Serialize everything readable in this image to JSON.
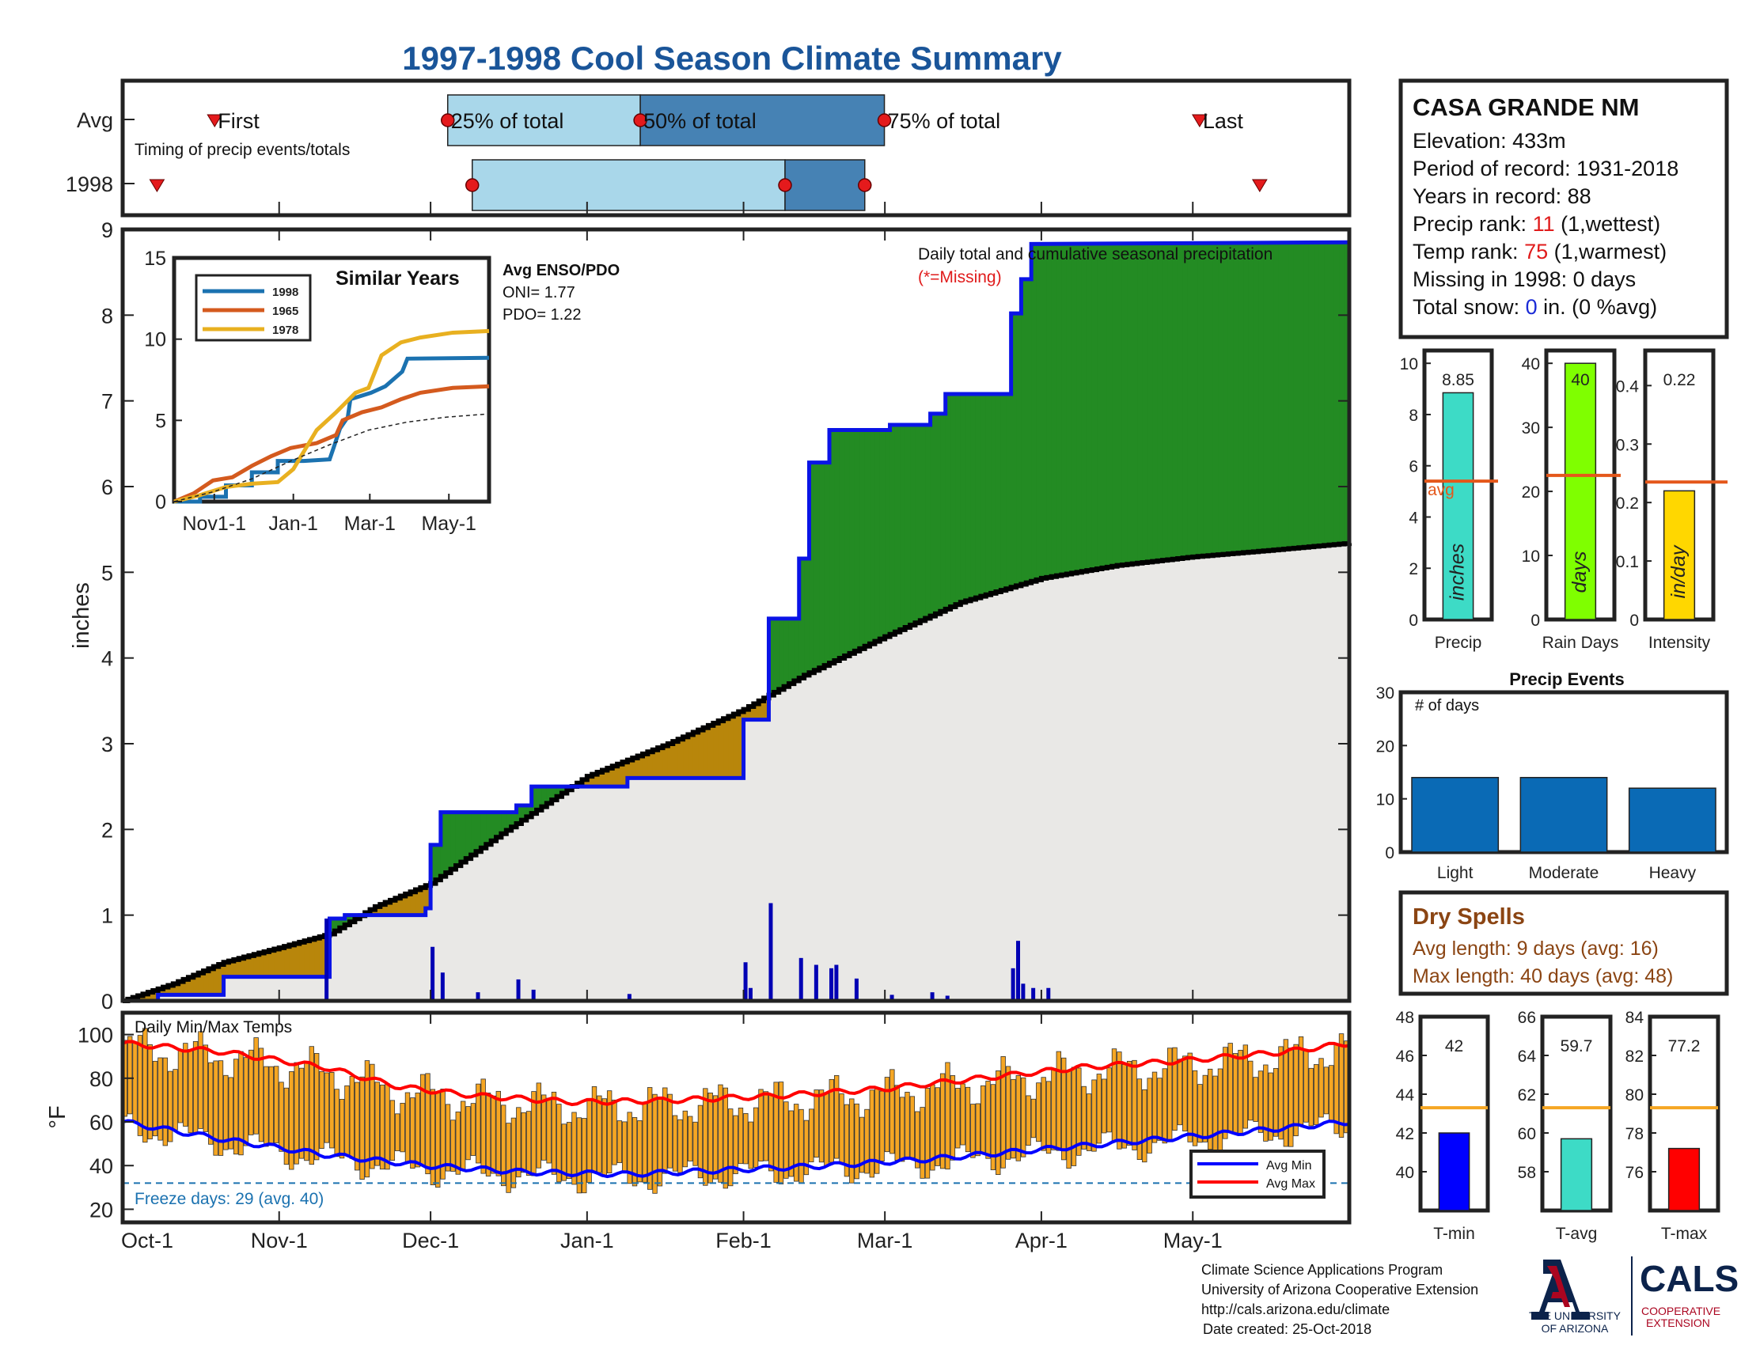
{
  "title": "1997-1998 Cool Season Climate Summary",
  "timing": {
    "row_avg": "Avg",
    "row_year": "1998",
    "first_label": "First",
    "last_label": "Last",
    "p25_label": "25% of total",
    "p50_label": "50% of total",
    "p75_label": "75% of total",
    "subtitle": "Timing of precip events/totals",
    "avg": {
      "first": 0.075,
      "p25": 0.265,
      "p50": 0.422,
      "p75": 0.621,
      "last": 0.878
    },
    "year": {
      "first": 0.028,
      "p25": 0.285,
      "p50": 0.54,
      "p75": 0.605,
      "last": 0.927
    }
  },
  "station": {
    "name": "CASA GRANDE NM",
    "elevation": "Elevation: 433m",
    "period": "Period of record: 1931-2018",
    "years": "Years in record: 88",
    "precip_rank_label": "Precip rank: ",
    "precip_rank_value": "11",
    "precip_rank_note": " (1,wettest)",
    "temp_rank_label": "Temp rank: ",
    "temp_rank_value": "75",
    "temp_rank_note": " (1,warmest)",
    "missing": "Missing in 1998: 0 days",
    "snow_label": "Total snow: ",
    "snow_value": "0",
    "snow_note": " in. (0 %avg)"
  },
  "main_chart": {
    "ylabel": "inches",
    "yticks": [
      0,
      1,
      2,
      3,
      4,
      5,
      6,
      7,
      8,
      9
    ],
    "xticks": [
      "Oct-1",
      "Nov-1",
      "Dec-1",
      "Jan-1",
      "Feb-1",
      "Mar-1",
      "Apr-1",
      "May-1"
    ],
    "xtick_days": [
      0,
      31,
      61,
      92,
      123,
      151,
      182,
      212
    ],
    "legend_text": "Daily total and cumulative seasonal precipitation",
    "missing_note": "(*=Missing)",
    "enso_title": "Avg ENSO/PDO",
    "oni": "ONI= 1.77",
    "pdo": "PDO= 1.22"
  },
  "chart_data": [
    {
      "type": "line",
      "title": "",
      "ylabel": "inches",
      "xlabel": "",
      "ylim": [
        0,
        9.0
      ],
      "x_unit": "day of season from Oct-1",
      "series": [
        {
          "name": "",
          "kind": "cumulative-observed-step",
          "points": [
            [
              0,
              0
            ],
            [
              7,
              0
            ],
            [
              7,
              0.07
            ],
            [
              20,
              0.07
            ],
            [
              20,
              0.28
            ],
            [
              41,
              0.28
            ],
            [
              41,
              0.96
            ],
            [
              44,
              0.96
            ],
            [
              44,
              1.0
            ],
            [
              60,
              1.0
            ],
            [
              60,
              1.08
            ],
            [
              61,
              1.08
            ],
            [
              61,
              1.82
            ],
            [
              63,
              1.82
            ],
            [
              63,
              2.2
            ],
            [
              78,
              2.2
            ],
            [
              78,
              2.28
            ],
            [
              81,
              2.28
            ],
            [
              81,
              2.5
            ],
            [
              100,
              2.5
            ],
            [
              100,
              2.6
            ],
            [
              123,
              2.6
            ],
            [
              123,
              3.28
            ],
            [
              128,
              3.28
            ],
            [
              128,
              4.46
            ],
            [
              134,
              4.46
            ],
            [
              134,
              5.16
            ],
            [
              136,
              5.16
            ],
            [
              136,
              6.28
            ],
            [
              140,
              6.28
            ],
            [
              140,
              6.66
            ],
            [
              152,
              6.66
            ],
            [
              152,
              6.72
            ],
            [
              160,
              6.72
            ],
            [
              160,
              6.85
            ],
            [
              163,
              6.85
            ],
            [
              163,
              7.08
            ],
            [
              176,
              7.08
            ],
            [
              176,
              8.02
            ],
            [
              178,
              8.02
            ],
            [
              178,
              8.42
            ],
            [
              180,
              8.42
            ],
            [
              180,
              8.83
            ],
            [
              243,
              8.85
            ]
          ]
        },
        {
          "name": "",
          "kind": "cumulative-average",
          "points": [
            [
              0,
              0
            ],
            [
              10,
              0.2
            ],
            [
              20,
              0.45
            ],
            [
              31,
              0.62
            ],
            [
              41,
              0.78
            ],
            [
              50,
              1.1
            ],
            [
              61,
              1.37
            ],
            [
              75,
              1.95
            ],
            [
              92,
              2.62
            ],
            [
              108,
              3.0
            ],
            [
              123,
              3.4
            ],
            [
              135,
              3.8
            ],
            [
              151,
              4.25
            ],
            [
              166,
              4.65
            ],
            [
              182,
              4.93
            ],
            [
              197,
              5.08
            ],
            [
              212,
              5.18
            ],
            [
              228,
              5.26
            ],
            [
              243,
              5.34
            ]
          ]
        }
      ],
      "daily_bars": [
        [
          40,
          0.96
        ],
        [
          61,
          0.63
        ],
        [
          63,
          0.33
        ],
        [
          70,
          0.1
        ],
        [
          78,
          0.25
        ],
        [
          81,
          0.13
        ],
        [
          100,
          0.08
        ],
        [
          123,
          0.45
        ],
        [
          124,
          0.15
        ],
        [
          128,
          1.14
        ],
        [
          134,
          0.5
        ],
        [
          137,
          0.42
        ],
        [
          140,
          0.38
        ],
        [
          141,
          0.42
        ],
        [
          145,
          0.26
        ],
        [
          152,
          0.07
        ],
        [
          160,
          0.1
        ],
        [
          163,
          0.06
        ],
        [
          176,
          0.38
        ],
        [
          177,
          0.7
        ],
        [
          178,
          0.2
        ],
        [
          180,
          0.15
        ],
        [
          183,
          0.15
        ]
      ]
    },
    {
      "type": "line",
      "title": "Similar Years",
      "ylim": [
        0,
        15
      ],
      "yticks": [
        0,
        5,
        10,
        15
      ],
      "xticks": [
        "Nov1-1",
        "Jan-1",
        "Mar-1",
        "May-1"
      ],
      "series": [
        {
          "name": "1998",
          "color": "#1b72b0",
          "points": [
            [
              0,
              0
            ],
            [
              20,
              0
            ],
            [
              20,
              0.3
            ],
            [
              40,
              0.3
            ],
            [
              40,
              1.0
            ],
            [
              60,
              1.0
            ],
            [
              60,
              1.8
            ],
            [
              80,
              1.8
            ],
            [
              80,
              2.5
            ],
            [
              100,
              2.5
            ],
            [
              120,
              2.6
            ],
            [
              123,
              3.3
            ],
            [
              128,
              4.5
            ],
            [
              134,
              5.2
            ],
            [
              136,
              6.3
            ],
            [
              152,
              6.7
            ],
            [
              163,
              7.1
            ],
            [
              176,
              8.0
            ],
            [
              180,
              8.8
            ],
            [
              243,
              8.85
            ]
          ]
        },
        {
          "name": "1965",
          "color": "#d45a1e",
          "points": [
            [
              0,
              0
            ],
            [
              15,
              0.5
            ],
            [
              30,
              1.3
            ],
            [
              45,
              1.5
            ],
            [
              60,
              2.2
            ],
            [
              75,
              2.8
            ],
            [
              90,
              3.3
            ],
            [
              110,
              3.6
            ],
            [
              125,
              4.1
            ],
            [
              130,
              5.0
            ],
            [
              145,
              5.5
            ],
            [
              160,
              5.8
            ],
            [
              175,
              6.3
            ],
            [
              190,
              6.7
            ],
            [
              215,
              7.0
            ],
            [
              243,
              7.1
            ]
          ]
        },
        {
          "name": "1978",
          "color": "#e8b020",
          "points": [
            [
              0,
              0
            ],
            [
              20,
              0.4
            ],
            [
              40,
              0.9
            ],
            [
              60,
              1.1
            ],
            [
              80,
              1.2
            ],
            [
              92,
              2.0
            ],
            [
              110,
              4.4
            ],
            [
              125,
              5.5
            ],
            [
              140,
              6.7
            ],
            [
              150,
              7.0
            ],
            [
              160,
              9.0
            ],
            [
              175,
              9.8
            ],
            [
              190,
              10.1
            ],
            [
              215,
              10.4
            ],
            [
              243,
              10.5
            ]
          ]
        },
        {
          "name": "",
          "color": "#222222",
          "dashed": true,
          "points": [
            [
              0,
              0
            ],
            [
              30,
              0.6
            ],
            [
              60,
              1.4
            ],
            [
              90,
              2.5
            ],
            [
              120,
              3.5
            ],
            [
              150,
              4.4
            ],
            [
              180,
              4.9
            ],
            [
              210,
              5.2
            ],
            [
              243,
              5.4
            ]
          ]
        }
      ]
    },
    {
      "type": "bar",
      "ylim": [
        0,
        10.5
      ],
      "yticks": [
        0,
        2,
        4,
        6,
        8,
        10
      ],
      "categories": [
        "Precip"
      ],
      "values": [
        8.85
      ],
      "value_label": "8.85",
      "unit_label": "inches",
      "avg": 5.4,
      "avg_label": "avg",
      "color": "#3ddbc6"
    },
    {
      "type": "bar",
      "ylim": [
        0,
        42
      ],
      "yticks": [
        0,
        10,
        20,
        30,
        40
      ],
      "categories": [
        "Rain Days"
      ],
      "values": [
        40
      ],
      "value_label": "40",
      "unit_label": "days",
      "avg": 22.5,
      "color": "#7fff00"
    },
    {
      "type": "bar",
      "ylim": [
        0,
        0.46
      ],
      "yticks": [
        0,
        0.1,
        0.2,
        0.3,
        0.4
      ],
      "categories": [
        "Intensity"
      ],
      "values": [
        0.22
      ],
      "value_label": "0.22",
      "unit_label": "in/day",
      "avg": 0.235,
      "color": "#ffd700"
    },
    {
      "type": "bar",
      "title": "Precip Events",
      "ylabel": "# of days",
      "ylim": [
        0,
        30
      ],
      "yticks": [
        0,
        10,
        20,
        30
      ],
      "categories": [
        "Light",
        "Moderate",
        "Heavy"
      ],
      "values": [
        14,
        14,
        12
      ],
      "color": "#0a6ab5"
    },
    {
      "type": "bar",
      "title": "Daily Min/Max Temps",
      "ylabel": "°F",
      "ylim": [
        14,
        110
      ],
      "yticks": [
        20,
        40,
        60,
        80,
        100
      ],
      "freeze_line": 32,
      "freeze_label": "Freeze days: 29 (avg. 40)",
      "legend": [
        "Avg Min",
        "Avg Max"
      ],
      "avg_max_points": [
        [
          0,
          96
        ],
        [
          20,
          92
        ],
        [
          40,
          85
        ],
        [
          55,
          76
        ],
        [
          70,
          72
        ],
        [
          90,
          69
        ],
        [
          110,
          70
        ],
        [
          130,
          72
        ],
        [
          150,
          75
        ],
        [
          170,
          80
        ],
        [
          190,
          85
        ],
        [
          210,
          88
        ],
        [
          230,
          92
        ],
        [
          243,
          96
        ]
      ],
      "avg_min_points": [
        [
          0,
          60
        ],
        [
          20,
          52
        ],
        [
          40,
          45
        ],
        [
          60,
          40
        ],
        [
          80,
          37
        ],
        [
          100,
          36
        ],
        [
          120,
          38
        ],
        [
          140,
          40
        ],
        [
          160,
          43
        ],
        [
          180,
          47
        ],
        [
          200,
          51
        ],
        [
          220,
          55
        ],
        [
          243,
          60
        ]
      ]
    },
    {
      "type": "bar",
      "ylim": [
        38,
        48
      ],
      "yticks": [
        40,
        42,
        44,
        46,
        48
      ],
      "categories": [
        "T-min"
      ],
      "values": [
        42
      ],
      "value_label": "42",
      "avg": 43.3,
      "color": "#0000ff"
    },
    {
      "type": "bar",
      "ylim": [
        56,
        66
      ],
      "yticks": [
        58,
        60,
        62,
        64,
        66
      ],
      "categories": [
        "T-avg"
      ],
      "values": [
        59.7
      ],
      "value_label": "59.7",
      "avg": 61.3,
      "color": "#3ddbc6"
    },
    {
      "type": "bar",
      "ylim": [
        74,
        84
      ],
      "yticks": [
        76,
        78,
        80,
        82,
        84
      ],
      "categories": [
        "T-max"
      ],
      "values": [
        77.2
      ],
      "value_label": "77.2",
      "avg": 79.3,
      "color": "#ff0000"
    }
  ],
  "dry_spells": {
    "title": "Dry Spells",
    "avg": "Avg length: 9 days (avg: 16)",
    "max": "Max length: 40 days (avg: 48)"
  },
  "footer": {
    "line1": "Climate Science Applications Program",
    "line2": "University of Arizona Cooperative Extension",
    "line3": "http://cals.arizona.edu/climate",
    "line4": "Date created: 25-Oct-2018",
    "ua_line1": "THE UNIVERSITY",
    "ua_line2": "OF ARIZONA",
    "cals": "CALS",
    "coop1": "COOPERATIVE",
    "coop2": "EXTENSION"
  }
}
